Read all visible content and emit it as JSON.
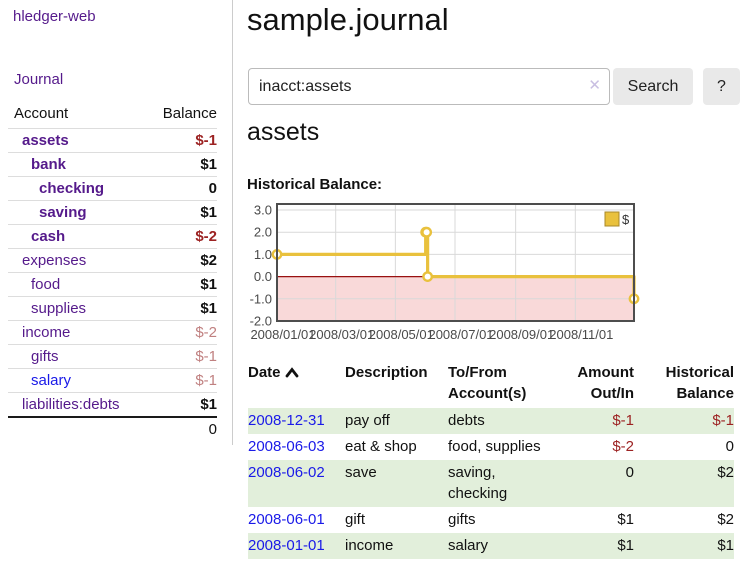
{
  "sidebar": {
    "brand": "hledger-web",
    "journal_link": "Journal",
    "accounts_table": {
      "headers": {
        "account": "Account",
        "balance": "Balance"
      },
      "rows": [
        {
          "name": "assets",
          "depth": 1,
          "bold": true,
          "link_color": "purple",
          "balance": "$-1",
          "balance_class": "neg-strong"
        },
        {
          "name": "bank",
          "depth": 2,
          "bold": true,
          "link_color": "purple",
          "balance": "$1",
          "balance_class": "bold"
        },
        {
          "name": "checking",
          "depth": 3,
          "bold": true,
          "link_color": "purple",
          "balance": "0",
          "balance_class": "bold"
        },
        {
          "name": "saving",
          "depth": 3,
          "bold": true,
          "link_color": "purple",
          "balance": "$1",
          "balance_class": "bold"
        },
        {
          "name": "cash",
          "depth": 2,
          "bold": true,
          "link_color": "purple",
          "balance": "$-2",
          "balance_class": "neg-strong"
        },
        {
          "name": "expenses",
          "depth": 1,
          "bold": false,
          "link_color": "purple",
          "balance": "$2",
          "balance_class": "bold"
        },
        {
          "name": "food",
          "depth": 2,
          "bold": false,
          "link_color": "purple",
          "balance": "$1",
          "balance_class": "bold"
        },
        {
          "name": "supplies",
          "depth": 2,
          "bold": false,
          "link_color": "purple",
          "balance": "$1",
          "balance_class": "bold"
        },
        {
          "name": "income",
          "depth": 1,
          "bold": false,
          "link_color": "purple",
          "balance": "$-2",
          "balance_class": "neg-soft"
        },
        {
          "name": "gifts",
          "depth": 2,
          "bold": false,
          "link_color": "purple",
          "balance": "$-1",
          "balance_class": "neg-soft"
        },
        {
          "name": "salary",
          "depth": 2,
          "bold": false,
          "link_color": "blue",
          "balance": "$-1",
          "balance_class": "neg-soft"
        },
        {
          "name": "liabilities:debts",
          "depth": 1,
          "bold": false,
          "link_color": "purple",
          "balance": "$1",
          "balance_class": "bold"
        }
      ],
      "total": "0"
    }
  },
  "header": {
    "title": "sample.journal"
  },
  "search": {
    "value": "inacct:assets",
    "clear_icon": "✕",
    "button_label": "Search",
    "help_label": "?"
  },
  "account_page": {
    "heading": "assets",
    "chart_label": "Historical Balance:"
  },
  "chart_data": {
    "type": "line",
    "title": "Historical Balance",
    "step": true,
    "series": [
      {
        "name": "$",
        "color": "#e9c13d",
        "points": [
          [
            "2008-01-01",
            1
          ],
          [
            "2008-06-01",
            2
          ],
          [
            "2008-06-02",
            2
          ],
          [
            "2008-06-03",
            0
          ],
          [
            "2008-12-31",
            -1
          ]
        ]
      }
    ],
    "x_ticks": [
      "2008/01/01",
      "2008/03/01",
      "2008/05/01",
      "2008/07/01",
      "2008/09/01",
      "2008/11/01"
    ],
    "y_ticks": [
      3.0,
      2.0,
      1.0,
      0.0,
      -1.0,
      -2.0
    ],
    "y_tick_labels": [
      "3.0",
      "2.0",
      "1.0",
      "0.0",
      "-1.0",
      "-2.0"
    ],
    "xlim": [
      "2008-01-01",
      "2008-12-31"
    ],
    "ylim": [
      -2.0,
      3.27
    ],
    "grid": true,
    "legend": {
      "position": "top-right",
      "label": "$"
    },
    "negative_region_fill": "#f9d9d9",
    "zero_line_color": "#991111"
  },
  "register_table": {
    "headers": [
      {
        "label": "Date",
        "align": "left",
        "sorted_ascending": true
      },
      {
        "label": "Description",
        "align": "left"
      },
      {
        "label": "To/From Account(s)",
        "align": "left"
      },
      {
        "label": "Amount Out/In",
        "align": "right"
      },
      {
        "label": "Historical Balance",
        "align": "right"
      }
    ],
    "rows": [
      {
        "date": "2008-12-31",
        "description": "pay off",
        "accounts": "debts",
        "amount": "$-1",
        "amount_negative": true,
        "balance": "$-1",
        "balance_negative": true,
        "shaded": true
      },
      {
        "date": "2008-06-03",
        "description": "eat & shop",
        "accounts": "food, supplies",
        "amount": "$-2",
        "amount_negative": true,
        "balance": "0",
        "balance_negative": false,
        "shaded": false
      },
      {
        "date": "2008-06-02",
        "description": "save",
        "accounts": "saving, checking",
        "amount": "0",
        "amount_negative": false,
        "balance": "$2",
        "balance_negative": false,
        "shaded": true
      },
      {
        "date": "2008-06-01",
        "description": "gift",
        "accounts": "gifts",
        "amount": "$1",
        "amount_negative": false,
        "balance": "$2",
        "balance_negative": false,
        "shaded": false
      },
      {
        "date": "2008-01-01",
        "description": "income",
        "accounts": "salary",
        "amount": "$1",
        "amount_negative": false,
        "balance": "$1",
        "balance_negative": false,
        "shaded": true
      }
    ]
  },
  "colors": {
    "link_purple": "#551a8b",
    "link_blue": "#1a1ae8",
    "negative_strong": "#9c2222",
    "negative_soft": "#c08080",
    "row_green": "#e2efdb",
    "chart_yellow": "#e9c13d",
    "chart_negative_region": "#f9d9d9",
    "button_gray": "#e9e9e9"
  }
}
